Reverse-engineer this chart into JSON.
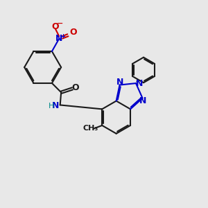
{
  "background_color": "#e8e8e8",
  "bond_color": "#1a1a1a",
  "nitrogen_color": "#0000cc",
  "oxygen_color": "#cc0000",
  "nh_color": "#008888",
  "lw": 1.5,
  "dbo": 0.04,
  "xlim": [
    0,
    10
  ],
  "ylim": [
    0,
    10
  ]
}
